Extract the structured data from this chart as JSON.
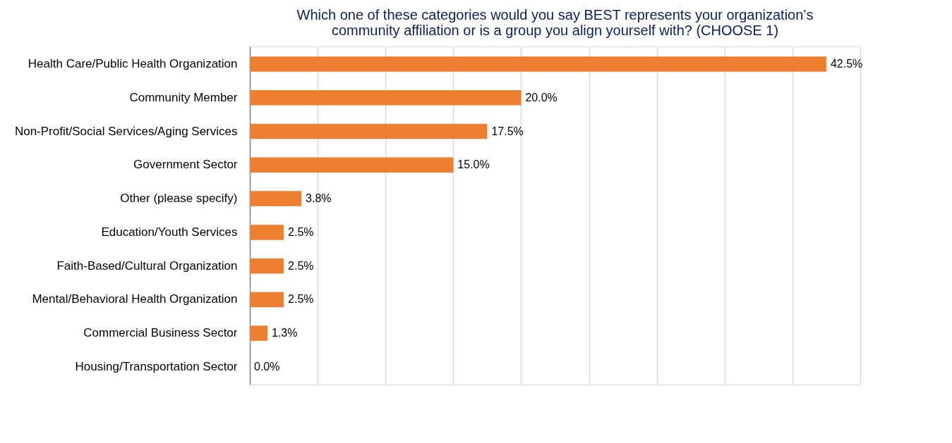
{
  "chart_data": {
    "type": "bar",
    "orientation": "horizontal",
    "title": [
      "Which one of these categories would you say BEST represents your organization’s",
      "community affiliation or is a group you align yourself with? (CHOOSE 1)"
    ],
    "categories": [
      "Health Care/Public Health Organization",
      "Community Member",
      "Non-Profit/Social Services/Aging Services",
      "Government Sector",
      "Other (please specify)",
      "Education/Youth Services",
      "Faith-Based/Cultural Organization",
      "Mental/Behavioral Health Organization",
      "Commercial Business Sector",
      "Housing/Transportation Sector"
    ],
    "values": [
      42.5,
      20.0,
      17.5,
      15.0,
      3.8,
      2.5,
      2.5,
      2.5,
      1.3,
      0.0
    ],
    "value_labels": [
      "42.5%",
      "20.0%",
      "17.5%",
      "15.0%",
      "3.8%",
      "2.5%",
      "2.5%",
      "2.5%",
      "1.3%",
      "0.0%"
    ],
    "color": "#ed7d31",
    "xlim": [
      0,
      45
    ],
    "xticks": [
      {
        "value": 0,
        "label": null
      },
      {
        "value": 5,
        "label": null
      },
      {
        "value": 10,
        "label": null
      },
      {
        "value": 15,
        "label": null
      },
      {
        "value": 20,
        "label": null
      },
      {
        "value": 25,
        "label": null
      },
      {
        "value": 30,
        "label": null
      },
      {
        "value": 35,
        "label": null
      },
      {
        "value": 40,
        "label": null
      },
      {
        "value": 45,
        "label": null
      }
    ],
    "grid": "x",
    "tick_labels": "y"
  }
}
